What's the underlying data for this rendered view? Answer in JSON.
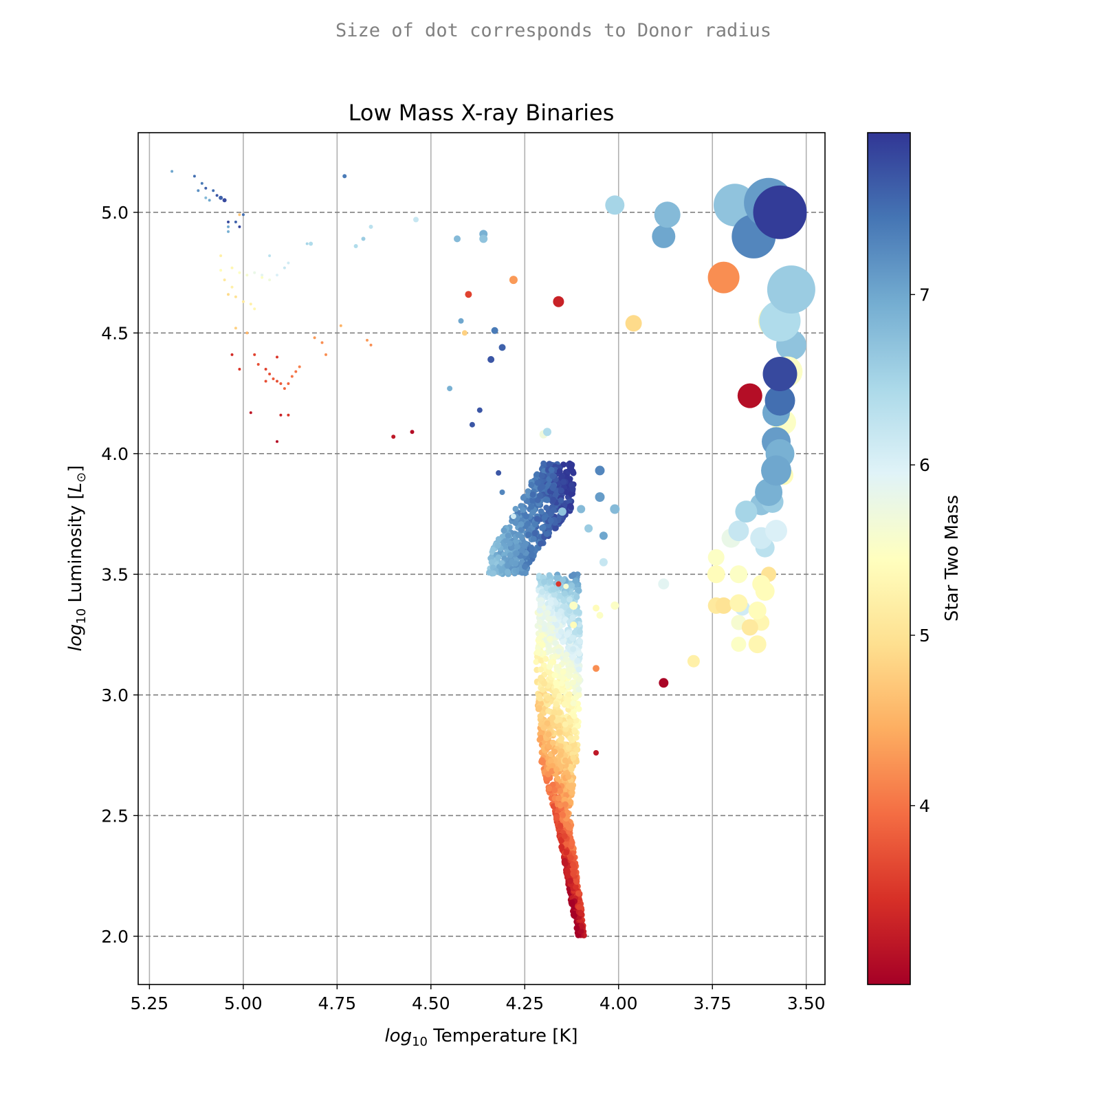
{
  "suptitle": "Size of dot corresponds to Donor radius",
  "chart_data": {
    "type": "scatter",
    "title": "Low Mass X-ray Binaries",
    "xlabel_math": "log",
    "xlabel_sub": "10",
    "xlabel_rest": " Temperature [K]",
    "ylabel_math": "log",
    "ylabel_sub": "10",
    "ylabel_rest": " Luminosity [",
    "ylabel_unit": "L",
    "ylabel_unit_sub": "⊙",
    "ylabel_end": "]",
    "xlim": [
      5.28,
      3.45
    ],
    "ylim": [
      1.8,
      5.33
    ],
    "x_inverted": true,
    "xticks": [
      5.25,
      5.0,
      4.75,
      4.5,
      4.25,
      4.0,
      3.75,
      3.5
    ],
    "xtick_labels": [
      "5.25",
      "5.00",
      "4.75",
      "4.50",
      "4.25",
      "4.00",
      "3.75",
      "3.50"
    ],
    "yticks": [
      2.0,
      2.5,
      3.0,
      3.5,
      4.0,
      4.5,
      5.0
    ],
    "ytick_labels": [
      "2.0",
      "2.5",
      "3.0",
      "3.5",
      "4.0",
      "4.5",
      "5.0"
    ],
    "grid": "vertical solid gray, horizontal dashed gray",
    "colorbar": {
      "label": "Star Two Mass",
      "range": [
        2.95,
        7.95
      ],
      "ticks": [
        4,
        5,
        6,
        7
      ],
      "tick_labels": [
        "4",
        "5",
        "6",
        "7"
      ],
      "colormap": "RdYlBu"
    },
    "size_encoding": "Donor radius",
    "points": [
      {
        "x": 5.19,
        "y": 5.17,
        "m": 7.0,
        "r": 2
      },
      {
        "x": 5.13,
        "y": 5.15,
        "m": 7.5,
        "r": 2
      },
      {
        "x": 5.11,
        "y": 5.12,
        "m": 7.4,
        "r": 2
      },
      {
        "x": 5.12,
        "y": 5.09,
        "m": 7.2,
        "r": 2
      },
      {
        "x": 5.1,
        "y": 5.1,
        "m": 7.6,
        "r": 2
      },
      {
        "x": 5.08,
        "y": 5.09,
        "m": 7.5,
        "r": 2
      },
      {
        "x": 5.07,
        "y": 5.07,
        "m": 7.7,
        "r": 2
      },
      {
        "x": 5.06,
        "y": 5.06,
        "m": 7.6,
        "r": 3
      },
      {
        "x": 5.05,
        "y": 5.05,
        "m": 7.8,
        "r": 3
      },
      {
        "x": 5.09,
        "y": 5.05,
        "m": 7.0,
        "r": 2
      },
      {
        "x": 5.1,
        "y": 5.06,
        "m": 6.8,
        "r": 2
      },
      {
        "x": 5.0,
        "y": 4.99,
        "m": 7.5,
        "r": 2
      },
      {
        "x": 5.04,
        "y": 4.96,
        "m": 7.8,
        "r": 2
      },
      {
        "x": 5.02,
        "y": 4.96,
        "m": 7.6,
        "r": 2
      },
      {
        "x": 5.04,
        "y": 4.94,
        "m": 7.0,
        "r": 2
      },
      {
        "x": 5.01,
        "y": 4.94,
        "m": 7.8,
        "r": 2
      },
      {
        "x": 5.04,
        "y": 4.92,
        "m": 6.9,
        "r": 2
      },
      {
        "x": 5.01,
        "y": 4.99,
        "m": 4.7,
        "r": 2
      },
      {
        "x": 4.73,
        "y": 5.15,
        "m": 7.4,
        "r": 3
      },
      {
        "x": 5.06,
        "y": 4.76,
        "m": 5.4,
        "r": 2
      },
      {
        "x": 5.03,
        "y": 4.77,
        "m": 5.3,
        "r": 2
      },
      {
        "x": 5.01,
        "y": 4.75,
        "m": 5.5,
        "r": 2
      },
      {
        "x": 4.99,
        "y": 4.74,
        "m": 5.6,
        "r": 2
      },
      {
        "x": 4.97,
        "y": 4.75,
        "m": 5.8,
        "r": 2
      },
      {
        "x": 4.95,
        "y": 4.74,
        "m": 5.9,
        "r": 2
      },
      {
        "x": 4.93,
        "y": 4.72,
        "m": 5.7,
        "r": 2
      },
      {
        "x": 4.91,
        "y": 4.74,
        "m": 6.0,
        "r": 2
      },
      {
        "x": 4.89,
        "y": 4.77,
        "m": 6.2,
        "r": 2
      },
      {
        "x": 4.88,
        "y": 4.79,
        "m": 6.1,
        "r": 2
      },
      {
        "x": 4.93,
        "y": 4.82,
        "m": 6.3,
        "r": 2
      },
      {
        "x": 5.06,
        "y": 4.82,
        "m": 5.2,
        "r": 2
      },
      {
        "x": 5.05,
        "y": 4.72,
        "m": 5.1,
        "r": 2
      },
      {
        "x": 5.03,
        "y": 4.69,
        "m": 5.2,
        "r": 2
      },
      {
        "x": 5.04,
        "y": 4.66,
        "m": 4.9,
        "r": 2
      },
      {
        "x": 5.02,
        "y": 4.65,
        "m": 5.0,
        "r": 2
      },
      {
        "x": 5.0,
        "y": 4.63,
        "m": 5.1,
        "r": 2
      },
      {
        "x": 4.98,
        "y": 4.62,
        "m": 5.2,
        "r": 2
      },
      {
        "x": 4.97,
        "y": 4.6,
        "m": 5.3,
        "r": 2
      },
      {
        "x": 4.95,
        "y": 4.73,
        "m": 5.5,
        "r": 2
      },
      {
        "x": 5.02,
        "y": 4.52,
        "m": 4.8,
        "r": 2
      },
      {
        "x": 4.99,
        "y": 4.5,
        "m": 4.5,
        "r": 2
      },
      {
        "x": 4.74,
        "y": 4.53,
        "m": 4.5,
        "r": 2
      },
      {
        "x": 4.81,
        "y": 4.48,
        "m": 4.3,
        "r": 2
      },
      {
        "x": 4.79,
        "y": 4.46,
        "m": 4.2,
        "r": 2
      },
      {
        "x": 4.78,
        "y": 4.41,
        "m": 4.2,
        "r": 2
      },
      {
        "x": 4.67,
        "y": 4.47,
        "m": 4.3,
        "r": 2
      },
      {
        "x": 4.66,
        "y": 4.45,
        "m": 4.2,
        "r": 2
      },
      {
        "x": 4.97,
        "y": 4.41,
        "m": 3.6,
        "r": 2
      },
      {
        "x": 4.96,
        "y": 4.37,
        "m": 3.7,
        "r": 2
      },
      {
        "x": 4.94,
        "y": 4.35,
        "m": 3.6,
        "r": 2
      },
      {
        "x": 4.93,
        "y": 4.33,
        "m": 3.7,
        "r": 2
      },
      {
        "x": 4.92,
        "y": 4.31,
        "m": 3.8,
        "r": 2
      },
      {
        "x": 4.91,
        "y": 4.3,
        "m": 3.7,
        "r": 2
      },
      {
        "x": 4.9,
        "y": 4.29,
        "m": 3.8,
        "r": 2
      },
      {
        "x": 4.89,
        "y": 4.27,
        "m": 3.9,
        "r": 2
      },
      {
        "x": 4.88,
        "y": 4.29,
        "m": 3.9,
        "r": 2
      },
      {
        "x": 4.87,
        "y": 4.32,
        "m": 4.0,
        "r": 2
      },
      {
        "x": 4.86,
        "y": 4.34,
        "m": 4.0,
        "r": 2
      },
      {
        "x": 4.85,
        "y": 4.36,
        "m": 4.1,
        "r": 2
      },
      {
        "x": 4.94,
        "y": 4.3,
        "m": 3.7,
        "r": 2
      },
      {
        "x": 4.91,
        "y": 4.4,
        "m": 3.5,
        "r": 2
      },
      {
        "x": 5.01,
        "y": 4.35,
        "m": 3.5,
        "r": 2
      },
      {
        "x": 5.03,
        "y": 4.41,
        "m": 3.4,
        "r": 2
      },
      {
        "x": 4.98,
        "y": 4.17,
        "m": 3.2,
        "r": 2
      },
      {
        "x": 4.9,
        "y": 4.16,
        "m": 3.3,
        "r": 2
      },
      {
        "x": 4.88,
        "y": 4.16,
        "m": 3.5,
        "r": 2
      },
      {
        "x": 4.91,
        "y": 4.05,
        "m": 3.1,
        "r": 2
      },
      {
        "x": 4.6,
        "y": 4.07,
        "m": 3.2,
        "r": 3
      },
      {
        "x": 4.55,
        "y": 4.09,
        "m": 3.1,
        "r": 3
      },
      {
        "x": 4.83,
        "y": 4.87,
        "m": 6.5,
        "r": 2
      },
      {
        "x": 4.82,
        "y": 4.87,
        "m": 6.4,
        "r": 3
      },
      {
        "x": 4.68,
        "y": 4.89,
        "m": 6.6,
        "r": 3
      },
      {
        "x": 4.7,
        "y": 4.86,
        "m": 6.4,
        "r": 3
      },
      {
        "x": 4.66,
        "y": 4.94,
        "m": 6.3,
        "r": 3
      },
      {
        "x": 4.54,
        "y": 4.97,
        "m": 6.2,
        "r": 4
      },
      {
        "x": 4.43,
        "y": 4.89,
        "m": 6.8,
        "r": 5
      },
      {
        "x": 4.36,
        "y": 4.91,
        "m": 6.9,
        "r": 6
      },
      {
        "x": 4.36,
        "y": 4.89,
        "m": 6.7,
        "r": 6
      },
      {
        "x": 4.4,
        "y": 4.66,
        "m": 3.6,
        "r": 5
      },
      {
        "x": 4.28,
        "y": 4.72,
        "m": 4.3,
        "r": 6
      },
      {
        "x": 4.16,
        "y": 4.63,
        "m": 3.3,
        "r": 8
      },
      {
        "x": 4.42,
        "y": 4.55,
        "m": 7.0,
        "r": 4
      },
      {
        "x": 4.41,
        "y": 4.5,
        "m": 4.8,
        "r": 4
      },
      {
        "x": 4.33,
        "y": 4.51,
        "m": 7.4,
        "r": 5
      },
      {
        "x": 4.31,
        "y": 4.44,
        "m": 7.6,
        "r": 5
      },
      {
        "x": 4.34,
        "y": 4.39,
        "m": 7.7,
        "r": 5
      },
      {
        "x": 4.45,
        "y": 4.27,
        "m": 6.9,
        "r": 4
      },
      {
        "x": 4.37,
        "y": 4.18,
        "m": 7.7,
        "r": 4
      },
      {
        "x": 4.39,
        "y": 4.12,
        "m": 7.7,
        "r": 4
      },
      {
        "x": 4.2,
        "y": 4.08,
        "m": 5.7,
        "r": 6
      },
      {
        "x": 4.19,
        "y": 4.09,
        "m": 6.4,
        "r": 6
      },
      {
        "x": 4.32,
        "y": 3.92,
        "m": 7.7,
        "r": 4
      },
      {
        "x": 4.31,
        "y": 3.84,
        "m": 7.3,
        "r": 4
      },
      {
        "x": 4.28,
        "y": 3.74,
        "m": 6.1,
        "r": 4
      },
      {
        "x": 4.05,
        "y": 3.93,
        "m": 7.3,
        "r": 7
      },
      {
        "x": 4.05,
        "y": 3.82,
        "m": 7.1,
        "r": 7
      },
      {
        "x": 4.01,
        "y": 3.77,
        "m": 6.8,
        "r": 7
      },
      {
        "x": 4.15,
        "y": 3.76,
        "m": 6.7,
        "r": 6
      },
      {
        "x": 4.1,
        "y": 3.77,
        "m": 6.8,
        "r": 6
      },
      {
        "x": 4.08,
        "y": 3.69,
        "m": 6.6,
        "r": 6
      },
      {
        "x": 4.04,
        "y": 3.66,
        "m": 7.0,
        "r": 6
      },
      {
        "x": 4.04,
        "y": 3.55,
        "m": 6.2,
        "r": 6
      },
      {
        "x": 4.16,
        "y": 3.46,
        "m": 3.5,
        "r": 4
      },
      {
        "x": 4.14,
        "y": 3.45,
        "m": 5.6,
        "r": 4
      },
      {
        "x": 4.12,
        "y": 3.37,
        "m": 5.5,
        "r": 6
      },
      {
        "x": 4.06,
        "y": 3.36,
        "m": 5.4,
        "r": 5
      },
      {
        "x": 4.01,
        "y": 3.37,
        "m": 5.5,
        "r": 6
      },
      {
        "x": 4.05,
        "y": 3.33,
        "m": 5.5,
        "r": 5
      },
      {
        "x": 4.12,
        "y": 3.29,
        "m": 5.4,
        "r": 5
      },
      {
        "x": 4.06,
        "y": 3.11,
        "m": 4.2,
        "r": 5
      },
      {
        "x": 4.06,
        "y": 2.76,
        "m": 3.2,
        "r": 4
      },
      {
        "x": 4.01,
        "y": 5.03,
        "m": 6.5,
        "r": 14
      },
      {
        "x": 3.87,
        "y": 4.99,
        "m": 6.8,
        "r": 19
      },
      {
        "x": 3.88,
        "y": 4.9,
        "m": 7.0,
        "r": 17
      },
      {
        "x": 3.96,
        "y": 4.54,
        "m": 4.9,
        "r": 12
      },
      {
        "x": 3.88,
        "y": 3.05,
        "m": 3.0,
        "r": 7
      },
      {
        "x": 3.88,
        "y": 3.46,
        "m": 5.9,
        "r": 8
      },
      {
        "x": 3.8,
        "y": 3.14,
        "m": 5.2,
        "r": 9
      },
      {
        "x": 3.72,
        "y": 4.73,
        "m": 4.2,
        "r": 23
      },
      {
        "x": 3.65,
        "y": 4.24,
        "m": 3.1,
        "r": 18
      },
      {
        "x": 3.69,
        "y": 5.03,
        "m": 6.7,
        "r": 31
      },
      {
        "x": 3.6,
        "y": 5.04,
        "m": 7.1,
        "r": 36
      },
      {
        "x": 3.64,
        "y": 4.9,
        "m": 7.3,
        "r": 32
      },
      {
        "x": 3.57,
        "y": 5.0,
        "m": 7.9,
        "r": 39
      },
      {
        "x": 3.54,
        "y": 4.68,
        "m": 6.6,
        "r": 35
      },
      {
        "x": 3.58,
        "y": 4.55,
        "m": 5.3,
        "r": 26
      },
      {
        "x": 3.57,
        "y": 4.55,
        "m": 6.4,
        "r": 30
      },
      {
        "x": 3.54,
        "y": 4.45,
        "m": 6.7,
        "r": 22
      },
      {
        "x": 3.55,
        "y": 4.34,
        "m": 5.5,
        "r": 22
      },
      {
        "x": 3.57,
        "y": 4.33,
        "m": 7.8,
        "r": 25
      },
      {
        "x": 3.57,
        "y": 4.22,
        "m": 7.5,
        "r": 22
      },
      {
        "x": 3.56,
        "y": 4.13,
        "m": 5.5,
        "r": 18
      },
      {
        "x": 3.58,
        "y": 4.17,
        "m": 7.0,
        "r": 20
      },
      {
        "x": 3.58,
        "y": 4.05,
        "m": 7.1,
        "r": 21
      },
      {
        "x": 3.57,
        "y": 4.0,
        "m": 6.9,
        "r": 21
      },
      {
        "x": 3.58,
        "y": 3.93,
        "m": 7.0,
        "r": 22
      },
      {
        "x": 3.56,
        "y": 3.91,
        "m": 5.4,
        "r": 14
      },
      {
        "x": 3.6,
        "y": 3.84,
        "m": 6.9,
        "r": 20
      },
      {
        "x": 3.62,
        "y": 3.79,
        "m": 6.7,
        "r": 16
      },
      {
        "x": 3.59,
        "y": 3.8,
        "m": 6.6,
        "r": 16
      },
      {
        "x": 3.66,
        "y": 3.76,
        "m": 6.5,
        "r": 16
      },
      {
        "x": 3.68,
        "y": 3.68,
        "m": 6.2,
        "r": 15
      },
      {
        "x": 3.62,
        "y": 3.65,
        "m": 6.1,
        "r": 16
      },
      {
        "x": 3.7,
        "y": 3.65,
        "m": 5.8,
        "r": 14
      },
      {
        "x": 3.58,
        "y": 3.68,
        "m": 6.0,
        "r": 16
      },
      {
        "x": 3.61,
        "y": 3.61,
        "m": 6.3,
        "r": 14
      },
      {
        "x": 3.74,
        "y": 3.57,
        "m": 5.5,
        "r": 12
      },
      {
        "x": 3.74,
        "y": 3.5,
        "m": 5.4,
        "r": 13
      },
      {
        "x": 3.68,
        "y": 3.5,
        "m": 5.5,
        "r": 13
      },
      {
        "x": 3.62,
        "y": 3.46,
        "m": 5.4,
        "r": 13
      },
      {
        "x": 3.6,
        "y": 3.5,
        "m": 5.0,
        "r": 11
      },
      {
        "x": 3.61,
        "y": 3.43,
        "m": 5.4,
        "r": 14
      },
      {
        "x": 3.68,
        "y": 3.38,
        "m": 5.3,
        "r": 13
      },
      {
        "x": 3.74,
        "y": 3.37,
        "m": 5.1,
        "r": 12
      },
      {
        "x": 3.72,
        "y": 3.37,
        "m": 5.0,
        "r": 12
      },
      {
        "x": 3.67,
        "y": 3.36,
        "m": 6.1,
        "r": 11
      },
      {
        "x": 3.63,
        "y": 3.35,
        "m": 5.4,
        "r": 13
      },
      {
        "x": 3.62,
        "y": 3.3,
        "m": 5.3,
        "r": 12
      },
      {
        "x": 3.65,
        "y": 3.28,
        "m": 5.1,
        "r": 12
      },
      {
        "x": 3.68,
        "y": 3.3,
        "m": 5.6,
        "r": 11
      },
      {
        "x": 3.68,
        "y": 3.21,
        "m": 5.5,
        "r": 11
      },
      {
        "x": 3.63,
        "y": 3.21,
        "m": 5.3,
        "r": 13
      }
    ],
    "band_center": [
      [
        3.5,
        4.3
      ],
      [
        3.59,
        4.28
      ],
      [
        3.77,
        4.2
      ],
      [
        3.96,
        4.16
      ],
      [
        3.12,
        4.16
      ],
      [
        2.74,
        4.16
      ],
      [
        2.51,
        4.15
      ],
      [
        2.31,
        4.13
      ],
      [
        2.1,
        4.11
      ],
      [
        2.0,
        4.1
      ]
    ],
    "band_halfwidth": [
      [
        3.5,
        0.05
      ],
      [
        3.59,
        0.06
      ],
      [
        3.77,
        0.075
      ],
      [
        3.96,
        0.045
      ],
      [
        3.12,
        0.06
      ],
      [
        2.74,
        0.05
      ],
      [
        2.51,
        0.02
      ],
      [
        2.31,
        0.015
      ],
      [
        2.1,
        0.012
      ],
      [
        2.0,
        0.008
      ]
    ],
    "band_mass_top": 7.8,
    "band_mass_bottom": 3.0,
    "band_scale_y": [
      4.0,
      3.75,
      3.5,
      3.4,
      3.2,
      3.1,
      2.85,
      2.6,
      2.4,
      2.0
    ],
    "band_scale_m": [
      7.8,
      7.5,
      6.9,
      6.2,
      5.8,
      5.5,
      4.9,
      4.3,
      3.8,
      3.0
    ]
  }
}
